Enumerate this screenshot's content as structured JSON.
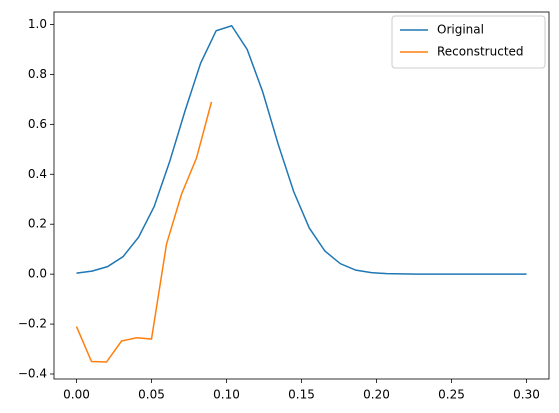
{
  "chart_data": {
    "type": "line",
    "series": [
      {
        "name": "Original",
        "color": "#1f77b4",
        "x": [
          0,
          0.01034,
          0.02069,
          0.03103,
          0.04138,
          0.05172,
          0.06207,
          0.07241,
          0.08276,
          0.0931,
          0.10345,
          0.11379,
          0.12414,
          0.13448,
          0.14483,
          0.15517,
          0.16552,
          0.17586,
          0.18621,
          0.19655,
          0.2069,
          0.21724,
          0.22759,
          0.23793,
          0.24828,
          0.25862,
          0.26897,
          0.27931,
          0.28966,
          0.3
        ],
        "values": [
          0.004,
          0.012,
          0.03,
          0.07,
          0.148,
          0.27,
          0.45,
          0.655,
          0.845,
          0.975,
          0.995,
          0.9,
          0.73,
          0.52,
          0.33,
          0.185,
          0.093,
          0.042,
          0.016,
          0.006,
          0.002,
          0.001,
          0,
          0,
          0,
          0,
          0,
          0,
          0,
          0
        ]
      },
      {
        "name": "Reconstructed",
        "color": "#ff7f0e",
        "x": [
          0,
          0.01,
          0.02,
          0.03,
          0.04,
          0.05,
          0.06,
          0.07,
          0.08,
          0.09
        ],
        "values": [
          -0.21,
          -0.35,
          -0.352,
          -0.268,
          -0.255,
          -0.26,
          0.12,
          0.32,
          0.465,
          0.69
        ]
      }
    ],
    "xlim": [
      -0.015,
      0.315
    ],
    "ylim": [
      -0.42,
      1.05
    ],
    "xticks": [
      {
        "value": 0,
        "label": "0.00"
      },
      {
        "value": 0.05,
        "label": "0.05"
      },
      {
        "value": 0.1,
        "label": "0.10"
      },
      {
        "value": 0.15,
        "label": "0.15"
      },
      {
        "value": 0.2,
        "label": "0.20"
      },
      {
        "value": 0.25,
        "label": "0.25"
      },
      {
        "value": 0.3,
        "label": "0.30"
      }
    ],
    "yticks": [
      {
        "value": -0.4,
        "label": "−0.4"
      },
      {
        "value": -0.2,
        "label": "−0.2"
      },
      {
        "value": 0,
        "label": "0.0"
      },
      {
        "value": 0.2,
        "label": "0.2"
      },
      {
        "value": 0.4,
        "label": "0.4"
      },
      {
        "value": 0.6,
        "label": "0.6"
      },
      {
        "value": 0.8,
        "label": "0.8"
      },
      {
        "value": 1,
        "label": "1.0"
      }
    ],
    "legend": "upper right"
  }
}
